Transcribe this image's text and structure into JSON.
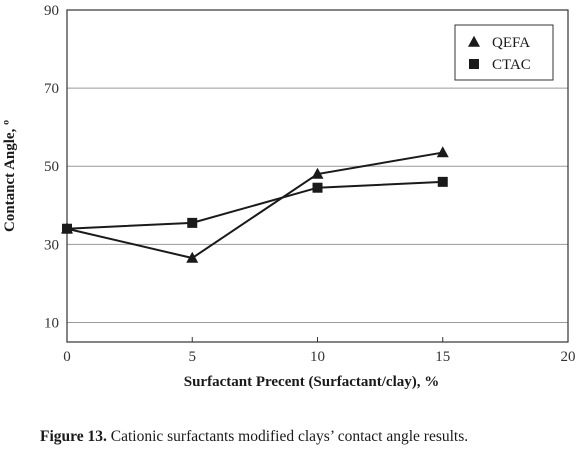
{
  "chart_data": {
    "type": "line",
    "x": [
      0,
      5,
      10,
      15
    ],
    "series": [
      {
        "name": "QEFA",
        "marker": "triangle",
        "values": [
          34,
          26.5,
          48,
          53.5
        ]
      },
      {
        "name": "CTAC",
        "marker": "square",
        "values": [
          34,
          35.5,
          44.5,
          46
        ]
      }
    ],
    "xlabel": "Surfactant Precent (Surfactant/clay), %",
    "ylabel": "Contanct Angle, º",
    "xlim": [
      0,
      20
    ],
    "ylim": [
      5,
      90
    ],
    "xticks": [
      "0",
      "5",
      "10",
      "15",
      "20"
    ],
    "yticks": [
      "10",
      "30",
      "50",
      "70",
      "90"
    ],
    "grid": "horizontal",
    "legend_position": "top-right",
    "colors": {
      "line": "#1a1a1a",
      "grid": "#9a9a9a",
      "frame": "#333333"
    }
  },
  "caption": {
    "label": "Figure 13.",
    "text": " Cationic surfactants modified clays’ contact angle results."
  }
}
